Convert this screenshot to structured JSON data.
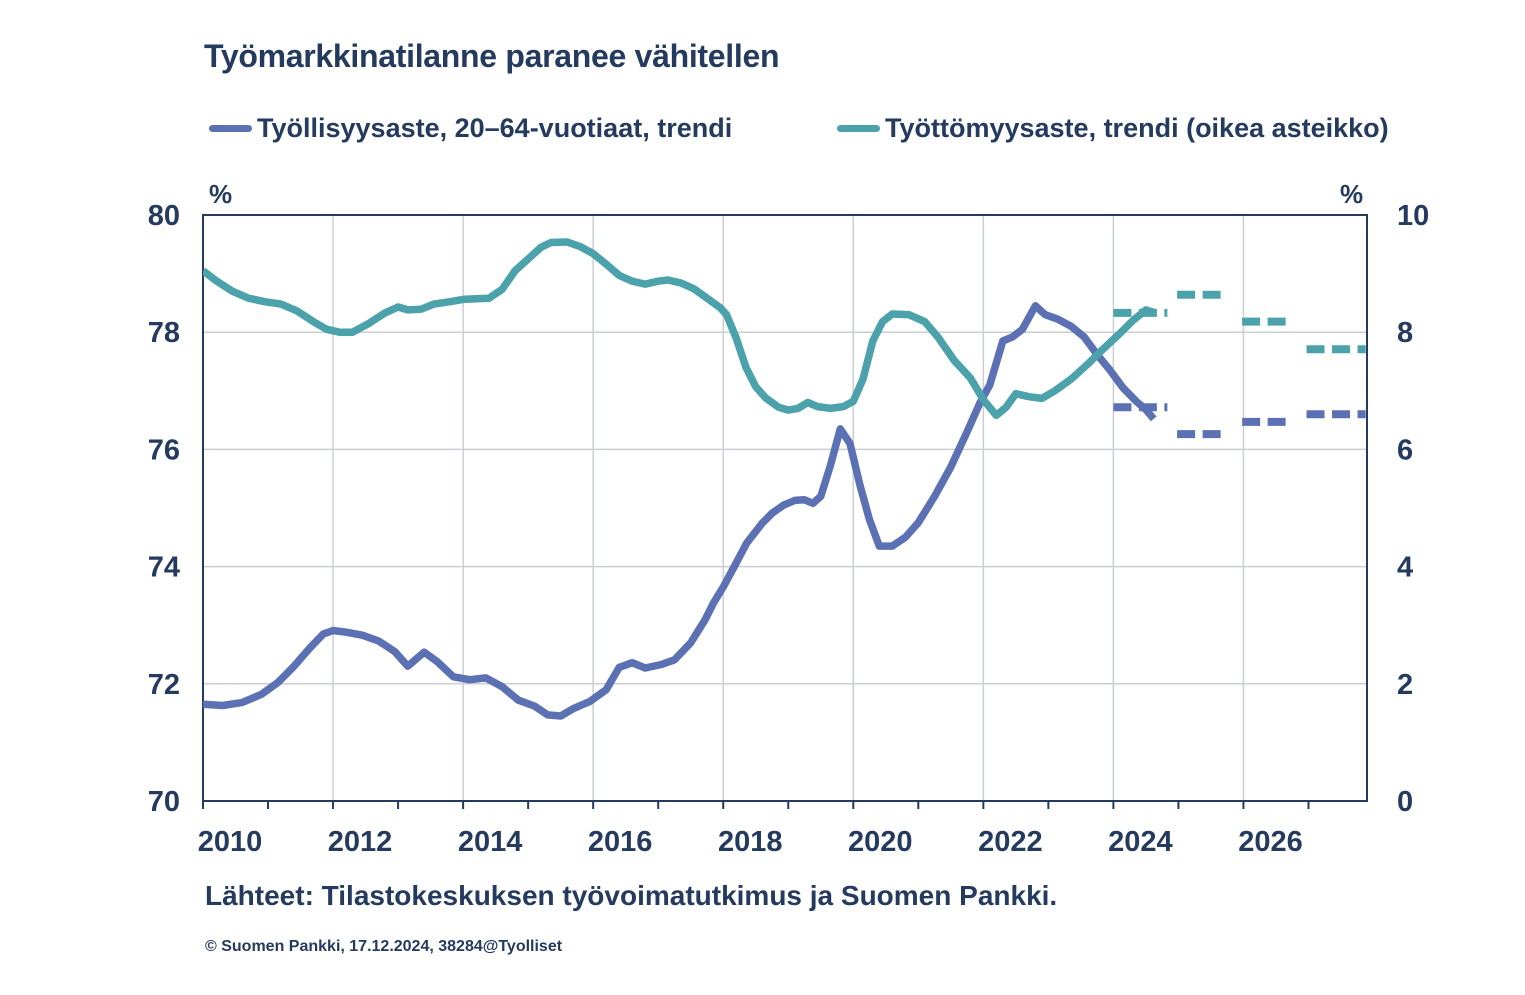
{
  "theme": {
    "background": "#FFFFFF",
    "text_color": "#243A5E",
    "axis_color": "#243A5E",
    "grid_color": "#CBCED4",
    "employment_color": "#5B71B3",
    "unemployment_color": "#4BA2AB"
  },
  "footer": {
    "sources": "Lähteet: Tilastokeskuksen työvoimatutkimus ja Suomen Pankki.",
    "copyright": "© Suomen Pankki, 17.12.2024, 38284@Tyolliset"
  },
  "chart_data": {
    "type": "line",
    "title": "Työmarkkinatilanne paranee vähitellen",
    "x_axis": {
      "range": [
        2010,
        2027.9
      ],
      "ticks": [
        2010,
        2012,
        2014,
        2016,
        2018,
        2020,
        2022,
        2024,
        2026
      ],
      "minor_tick_step_years": 1,
      "grid": true
    },
    "y_left": {
      "unit": "%",
      "range": [
        70,
        80
      ],
      "ticks": [
        80,
        78,
        76,
        74,
        72,
        70
      ],
      "grid": true
    },
    "y_right": {
      "unit": "%",
      "range": [
        0,
        10
      ],
      "ticks": [
        10,
        8,
        6,
        4,
        2,
        0
      ]
    },
    "legend_position": "top",
    "series": [
      {
        "id": "employment",
        "name": "Työllisyysaste, 20–64-vuotiaat, trendi",
        "axis": "left",
        "color": "#5B71B3",
        "style": "solid",
        "points": [
          [
            2010.0,
            71.65
          ],
          [
            2010.3,
            71.63
          ],
          [
            2010.6,
            71.68
          ],
          [
            2010.9,
            71.82
          ],
          [
            2011.15,
            72.02
          ],
          [
            2011.4,
            72.3
          ],
          [
            2011.65,
            72.62
          ],
          [
            2011.85,
            72.85
          ],
          [
            2012.0,
            72.91
          ],
          [
            2012.2,
            72.88
          ],
          [
            2012.45,
            72.83
          ],
          [
            2012.7,
            72.73
          ],
          [
            2012.95,
            72.55
          ],
          [
            2013.15,
            72.3
          ],
          [
            2013.4,
            72.54
          ],
          [
            2013.6,
            72.38
          ],
          [
            2013.85,
            72.12
          ],
          [
            2014.1,
            72.07
          ],
          [
            2014.35,
            72.1
          ],
          [
            2014.6,
            71.95
          ],
          [
            2014.85,
            71.72
          ],
          [
            2015.1,
            71.62
          ],
          [
            2015.3,
            71.47
          ],
          [
            2015.5,
            71.45
          ],
          [
            2015.7,
            71.58
          ],
          [
            2015.95,
            71.7
          ],
          [
            2016.2,
            71.9
          ],
          [
            2016.4,
            72.28
          ],
          [
            2016.6,
            72.36
          ],
          [
            2016.8,
            72.27
          ],
          [
            2017.05,
            72.33
          ],
          [
            2017.25,
            72.41
          ],
          [
            2017.5,
            72.7
          ],
          [
            2017.72,
            73.09
          ],
          [
            2017.85,
            73.38
          ],
          [
            2018.0,
            73.65
          ],
          [
            2018.16,
            73.98
          ],
          [
            2018.36,
            74.4
          ],
          [
            2018.6,
            74.74
          ],
          [
            2018.75,
            74.91
          ],
          [
            2018.93,
            75.05
          ],
          [
            2019.1,
            75.13
          ],
          [
            2019.25,
            75.14
          ],
          [
            2019.38,
            75.08
          ],
          [
            2019.5,
            75.2
          ],
          [
            2019.65,
            75.73
          ],
          [
            2019.8,
            76.35
          ],
          [
            2019.95,
            76.1
          ],
          [
            2020.1,
            75.4
          ],
          [
            2020.25,
            74.8
          ],
          [
            2020.4,
            74.35
          ],
          [
            2020.6,
            74.35
          ],
          [
            2020.8,
            74.5
          ],
          [
            2021.0,
            74.75
          ],
          [
            2021.25,
            75.2
          ],
          [
            2021.5,
            75.7
          ],
          [
            2021.75,
            76.3
          ],
          [
            2021.95,
            76.8
          ],
          [
            2022.1,
            77.1
          ],
          [
            2022.3,
            77.85
          ],
          [
            2022.45,
            77.92
          ],
          [
            2022.6,
            78.05
          ],
          [
            2022.8,
            78.45
          ],
          [
            2022.95,
            78.3
          ],
          [
            2023.15,
            78.22
          ],
          [
            2023.35,
            78.1
          ],
          [
            2023.55,
            77.92
          ],
          [
            2023.75,
            77.62
          ],
          [
            2023.95,
            77.35
          ],
          [
            2024.15,
            77.05
          ],
          [
            2024.35,
            76.82
          ],
          [
            2024.5,
            76.68
          ],
          [
            2024.62,
            76.52
          ]
        ]
      },
      {
        "id": "unemployment",
        "name": "Työttömyysaste, trendi (oikea asteikko)",
        "axis": "right",
        "color": "#4BA2AB",
        "style": "solid",
        "points": [
          [
            2010.0,
            9.05
          ],
          [
            2010.2,
            8.88
          ],
          [
            2010.45,
            8.7
          ],
          [
            2010.7,
            8.58
          ],
          [
            2010.95,
            8.52
          ],
          [
            2011.2,
            8.48
          ],
          [
            2011.45,
            8.36
          ],
          [
            2011.7,
            8.18
          ],
          [
            2011.9,
            8.05
          ],
          [
            2012.1,
            8.0
          ],
          [
            2012.3,
            8.0
          ],
          [
            2012.55,
            8.15
          ],
          [
            2012.8,
            8.33
          ],
          [
            2013.0,
            8.43
          ],
          [
            2013.15,
            8.38
          ],
          [
            2013.35,
            8.39
          ],
          [
            2013.55,
            8.48
          ],
          [
            2013.8,
            8.52
          ],
          [
            2014.0,
            8.56
          ],
          [
            2014.2,
            8.57
          ],
          [
            2014.4,
            8.58
          ],
          [
            2014.6,
            8.73
          ],
          [
            2014.8,
            9.05
          ],
          [
            2015.0,
            9.25
          ],
          [
            2015.2,
            9.45
          ],
          [
            2015.35,
            9.53
          ],
          [
            2015.6,
            9.54
          ],
          [
            2015.8,
            9.46
          ],
          [
            2016.0,
            9.34
          ],
          [
            2016.2,
            9.16
          ],
          [
            2016.4,
            8.97
          ],
          [
            2016.6,
            8.87
          ],
          [
            2016.8,
            8.82
          ],
          [
            2017.0,
            8.87
          ],
          [
            2017.15,
            8.89
          ],
          [
            2017.35,
            8.84
          ],
          [
            2017.55,
            8.74
          ],
          [
            2017.75,
            8.58
          ],
          [
            2017.95,
            8.42
          ],
          [
            2018.05,
            8.3
          ],
          [
            2018.2,
            7.9
          ],
          [
            2018.35,
            7.4
          ],
          [
            2018.5,
            7.07
          ],
          [
            2018.65,
            6.88
          ],
          [
            2018.85,
            6.72
          ],
          [
            2019.0,
            6.67
          ],
          [
            2019.15,
            6.7
          ],
          [
            2019.3,
            6.8
          ],
          [
            2019.45,
            6.73
          ],
          [
            2019.65,
            6.7
          ],
          [
            2019.85,
            6.73
          ],
          [
            2020.0,
            6.82
          ],
          [
            2020.15,
            7.2
          ],
          [
            2020.3,
            7.85
          ],
          [
            2020.45,
            8.18
          ],
          [
            2020.6,
            8.31
          ],
          [
            2020.85,
            8.3
          ],
          [
            2021.1,
            8.18
          ],
          [
            2021.3,
            7.92
          ],
          [
            2021.55,
            7.52
          ],
          [
            2021.8,
            7.22
          ],
          [
            2022.0,
            6.85
          ],
          [
            2022.2,
            6.58
          ],
          [
            2022.35,
            6.72
          ],
          [
            2022.5,
            6.95
          ],
          [
            2022.7,
            6.9
          ],
          [
            2022.9,
            6.87
          ],
          [
            2023.1,
            7.0
          ],
          [
            2023.35,
            7.2
          ],
          [
            2023.6,
            7.45
          ],
          [
            2023.85,
            7.72
          ],
          [
            2024.1,
            7.98
          ],
          [
            2024.3,
            8.2
          ],
          [
            2024.5,
            8.38
          ],
          [
            2024.65,
            8.33
          ]
        ]
      }
    ],
    "forecast_dashes": [
      {
        "series": "employment",
        "axis": "left",
        "color": "#5B71B3",
        "levels": [
          {
            "year": 2024,
            "value": 76.72,
            "span": [
              2024.0,
              2024.83
            ]
          },
          {
            "year": 2025,
            "value": 76.26,
            "span": [
              2024.98,
              2025.68
            ]
          },
          {
            "year": 2026,
            "value": 76.47,
            "span": [
              2025.98,
              2026.68
            ]
          },
          {
            "year": 2027,
            "value": 76.6,
            "span": [
              2026.97,
              2027.88
            ]
          }
        ]
      },
      {
        "series": "unemployment",
        "axis": "right",
        "color": "#4BA2AB",
        "levels": [
          {
            "year": 2024,
            "value": 8.33,
            "span": [
              2024.0,
              2024.83
            ]
          },
          {
            "year": 2025,
            "value": 8.64,
            "span": [
              2024.98,
              2025.68
            ]
          },
          {
            "year": 2026,
            "value": 8.18,
            "span": [
              2025.98,
              2026.68
            ]
          },
          {
            "year": 2027,
            "value": 7.71,
            "span": [
              2026.97,
              2027.88
            ]
          }
        ]
      }
    ]
  }
}
